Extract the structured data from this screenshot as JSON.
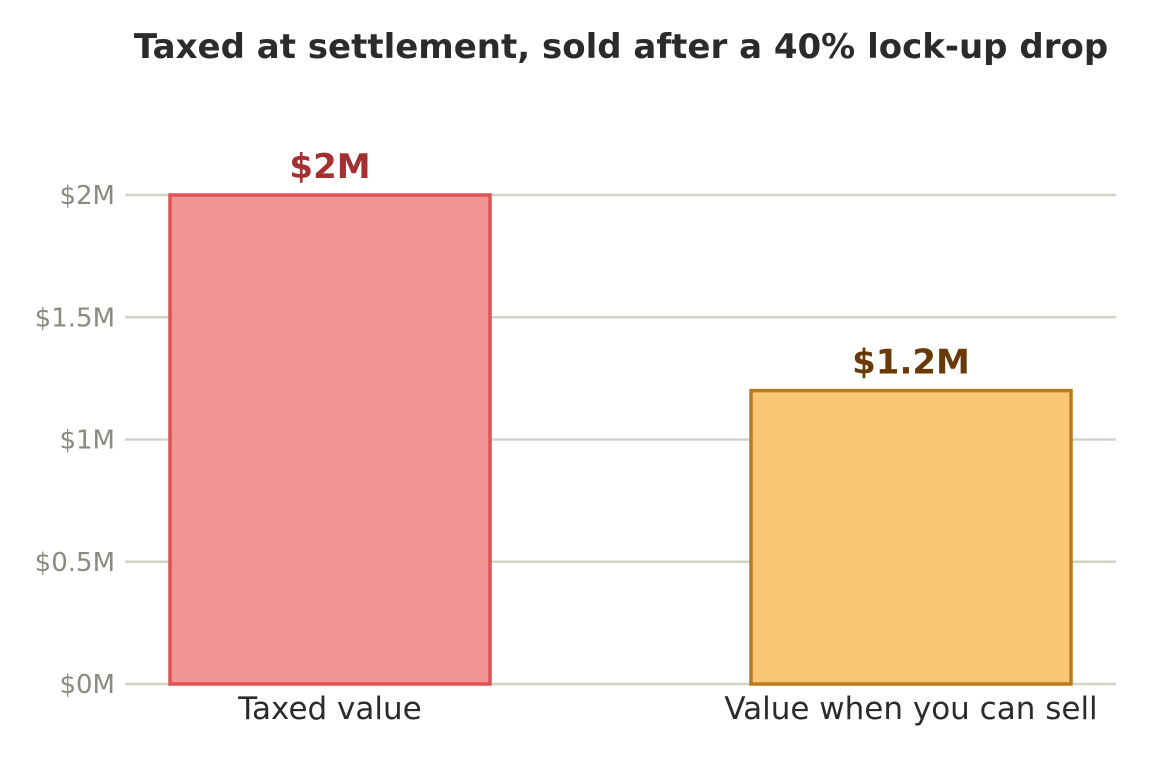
{
  "chart_data": {
    "type": "bar",
    "title": "Taxed at settlement, sold after a 40% lock-up drop",
    "xlabel": "",
    "ylabel": "",
    "categories": [
      "Taxed value",
      "Value when you can sell"
    ],
    "values": [
      2000000,
      1200000
    ],
    "value_labels": [
      "$2M",
      "$1.2M"
    ],
    "ylim": [
      0,
      2000000
    ],
    "yticks": [
      0,
      500000,
      1000000,
      1500000,
      2000000
    ],
    "ytick_labels": [
      "$0M",
      "$0.5M",
      "$1M",
      "$1.5M",
      "$2M"
    ],
    "grid": true,
    "legend": "none",
    "colors": {
      "fills": [
        "#f09494",
        "#f9c776"
      ],
      "strokes": [
        "#e05252",
        "#bb7a1f"
      ],
      "value_label_colors": [
        "#a33131",
        "#6a3a06"
      ],
      "grid": "#d3d3c8",
      "tick_text": "#8a8a80",
      "text": "#2b2b2b"
    }
  }
}
